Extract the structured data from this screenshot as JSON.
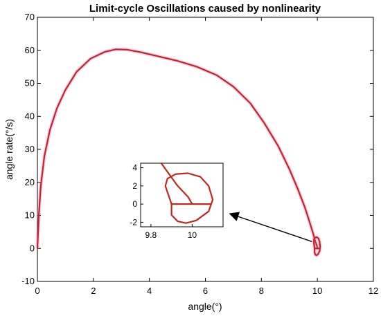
{
  "chart_data": {
    "type": "line",
    "title": "Limit-cycle Oscillations caused by nonlinearity",
    "xlabel": "angle(°)",
    "ylabel": "angle rate(°/s)",
    "xlim": [
      0,
      12
    ],
    "ylim": [
      -10,
      70
    ],
    "xticks": [
      "0",
      "2",
      "4",
      "6",
      "8",
      "10",
      "12"
    ],
    "yticks": [
      "-10",
      "0",
      "10",
      "20",
      "30",
      "40",
      "50",
      "60",
      "70"
    ],
    "grid": false,
    "legend": "none",
    "colors": {
      "trajectory": "#c0281f",
      "glow": "#ff66cc",
      "axis": "#000000"
    },
    "series": [
      {
        "x": [
          0,
          0.05,
          0.12,
          0.25,
          0.45,
          0.7,
          1.0,
          1.4,
          1.9,
          2.4,
          2.8,
          3.2,
          3.7,
          4.3,
          5.0,
          5.7,
          6.4,
          7.0,
          7.6,
          8.1,
          8.6,
          9.0,
          9.3,
          9.55,
          9.72,
          9.85,
          9.93,
          9.98,
          10.0
        ],
        "y": [
          0,
          10,
          19,
          28,
          36,
          42.5,
          48,
          53.5,
          57.5,
          59.5,
          60.3,
          60.2,
          59.4,
          58.2,
          56.8,
          55.0,
          52.5,
          49.0,
          44.0,
          38.0,
          31.0,
          24.0,
          18.0,
          12.5,
          8.0,
          4.5,
          2.0,
          0.8,
          0
        ]
      },
      {
        "x": [
          9.9,
          9.87,
          9.88,
          9.92,
          9.98,
          10.04,
          10.08,
          10.1,
          10.08,
          10.02,
          9.97,
          9.93,
          9.9,
          9.9,
          10.02,
          10.09
        ],
        "y": [
          0,
          2.0,
          2.8,
          3.3,
          3.4,
          3.0,
          2.0,
          0.5,
          -0.8,
          -1.8,
          -2.1,
          -1.9,
          -1.2,
          0,
          0,
          0
        ]
      }
    ],
    "inset": {
      "xlim": [
        9.75,
        10.15
      ],
      "ylim": [
        -2.5,
        4.5
      ],
      "xticks": [
        "9.8",
        "10"
      ],
      "yticks": [
        "-2",
        "0",
        "2",
        "4"
      ]
    },
    "annotation": {
      "arrow_from": [
        10.0,
        2.5
      ],
      "arrow_to": [
        7.0,
        10.5
      ]
    }
  }
}
